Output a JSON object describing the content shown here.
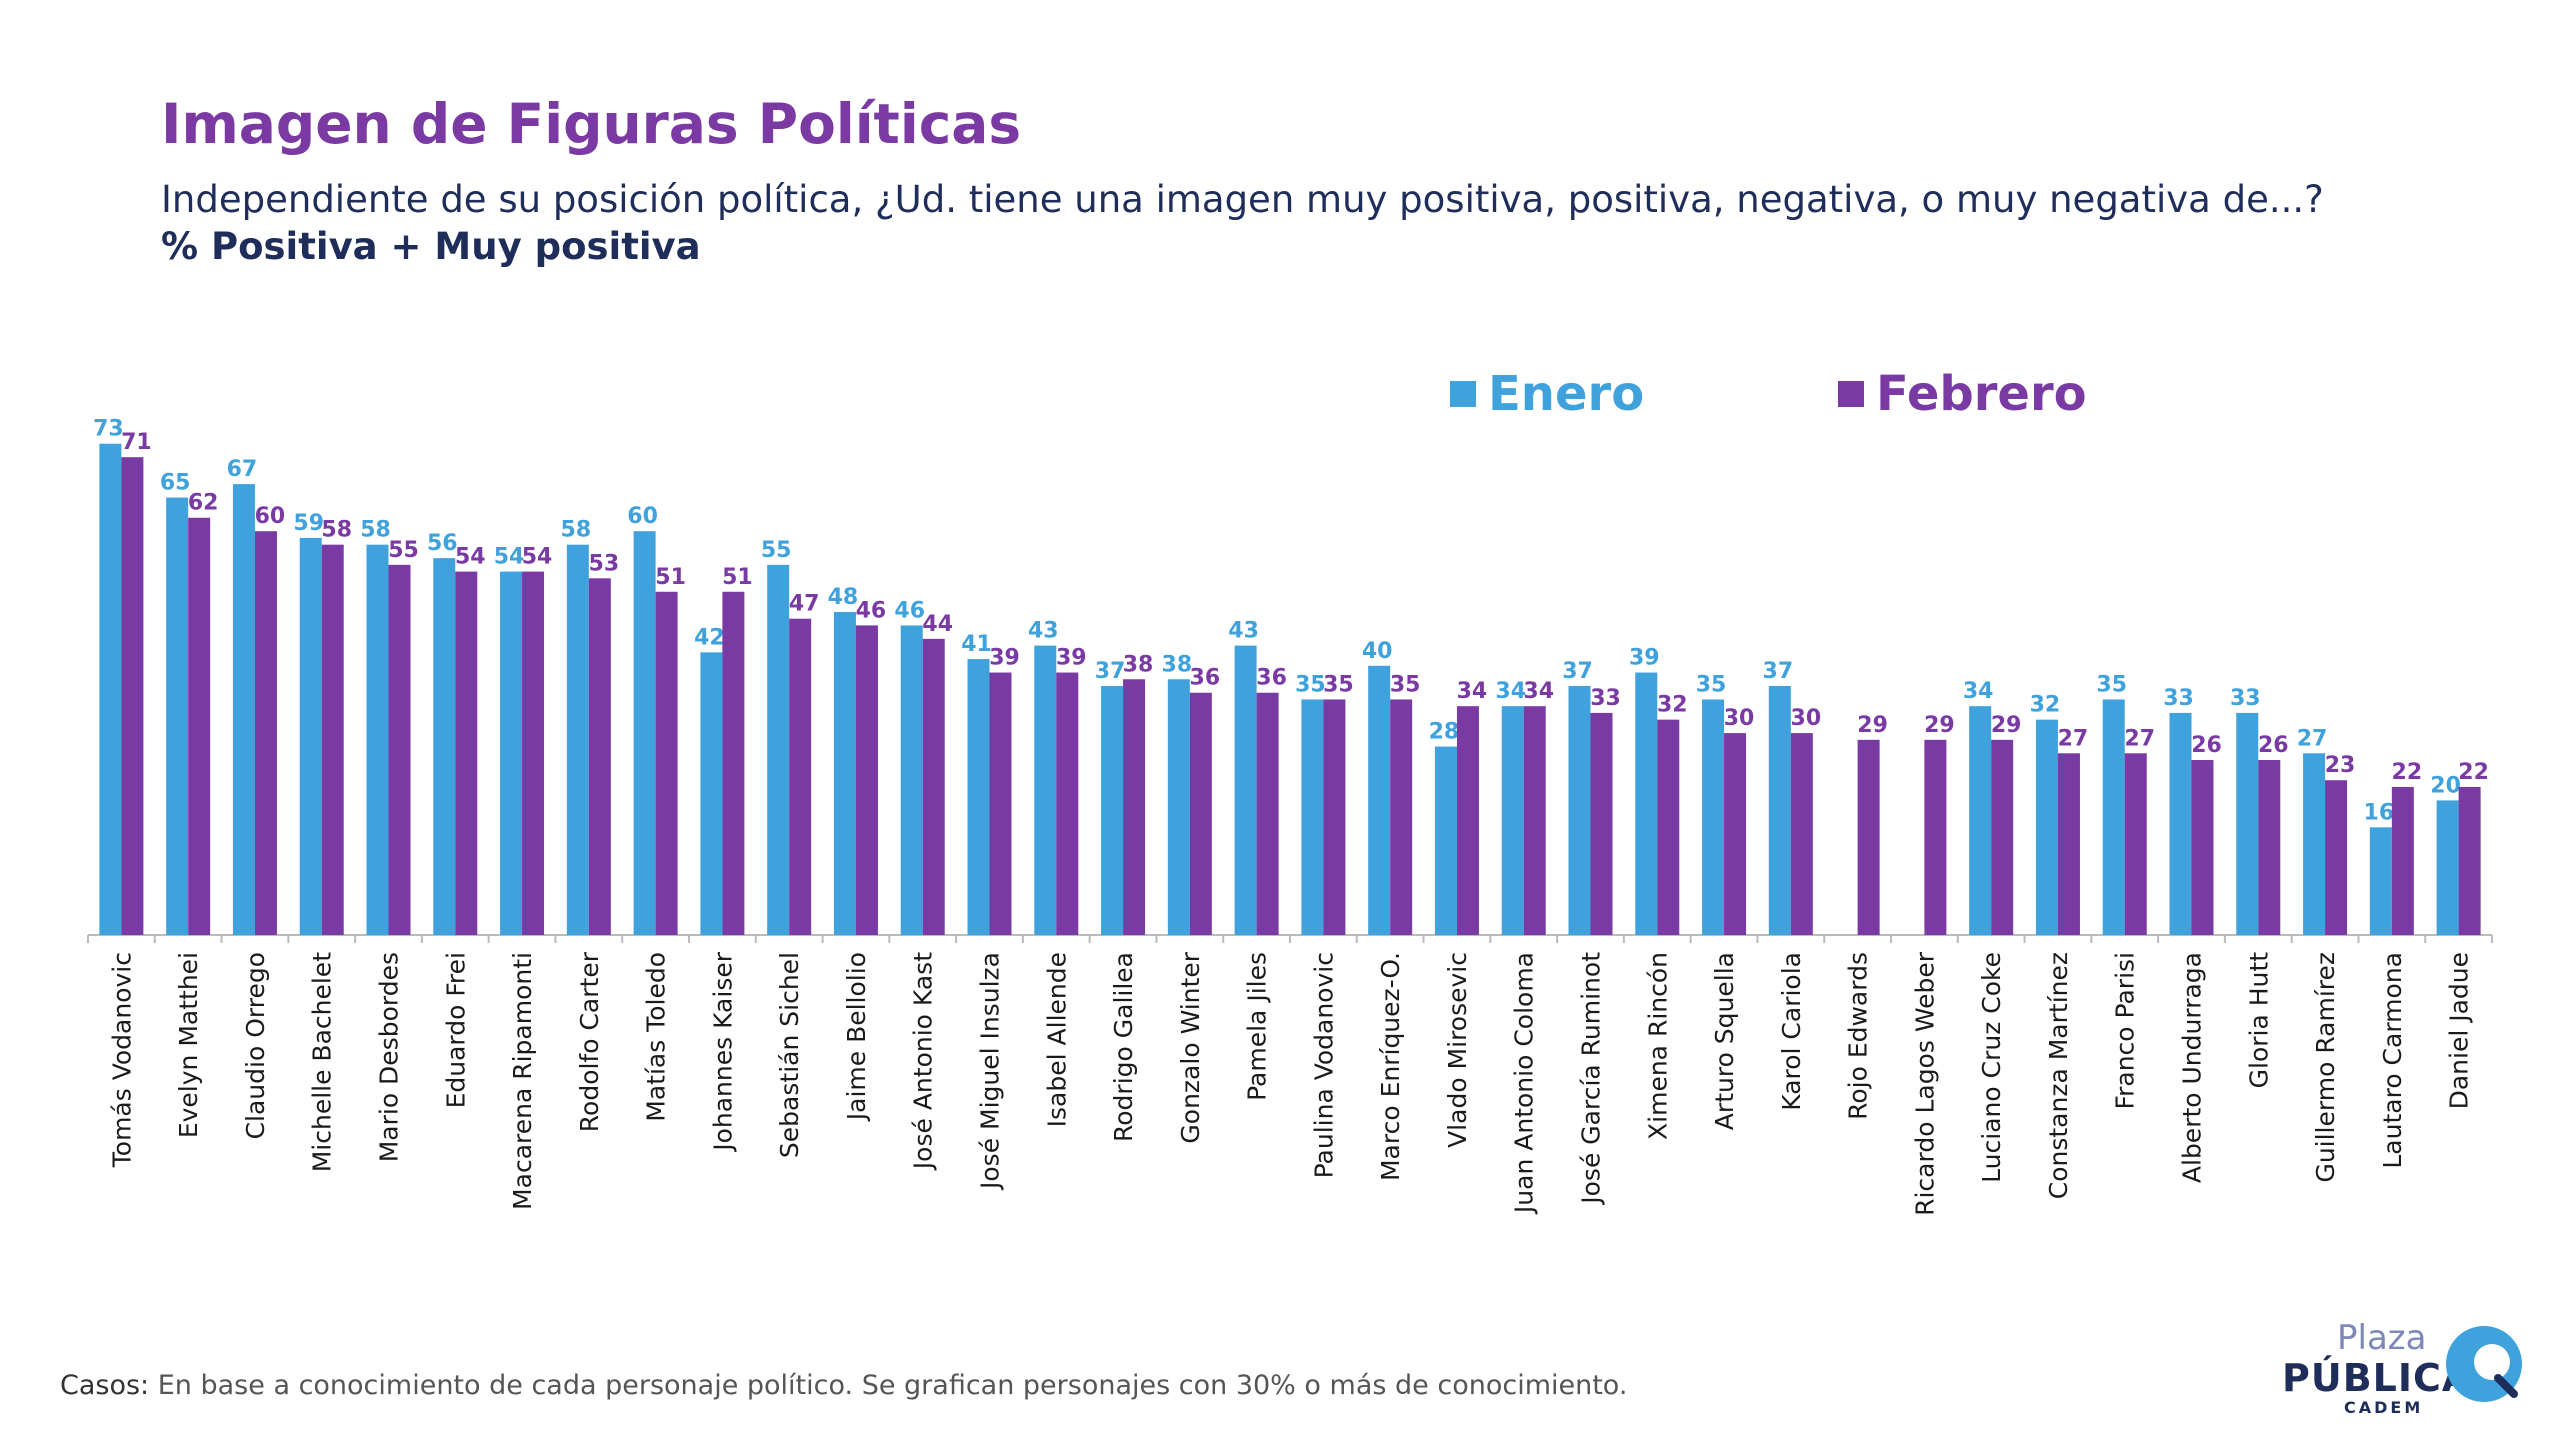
{
  "header": {
    "title": "Imagen de Figuras Políticas",
    "subtitle": "Independiente de su posición política, ¿Ud. tiene una imagen muy positiva, positiva, negativa, o muy negativa de...?",
    "metric": "% Positiva + Muy positiva"
  },
  "footnote": {
    "label": "Casos:",
    "text": " En base a conocimiento de cada personaje político. Se grafican personajes con 30% o más de conocimiento."
  },
  "logo": {
    "line1": "Plaza",
    "line2": "PÚBLICA",
    "line3": "CADEM"
  },
  "colors": {
    "enero": "#3fa2dd",
    "febrero": "#7a3aa3",
    "axis": "#bbbbbb",
    "label": "#1a1a1a"
  },
  "chart_data": {
    "type": "bar",
    "legend_position": "top-right",
    "grid": false,
    "ylim": [
      0,
      80
    ],
    "categories": [
      "Tomás Vodanovic",
      "Evelyn Matthei",
      "Claudio Orrego",
      "Michelle Bachelet",
      "Mario Desbordes",
      "Eduardo Frei",
      "Macarena Ripamonti",
      "Rodolfo Carter",
      "Matías Toledo",
      "Johannes Kaiser",
      "Sebastián Sichel",
      "Jaime Bellolio",
      "José Antonio Kast",
      "José Miguel Insulza",
      "Isabel Allende",
      "Rodrigo Galilea",
      "Gonzalo Winter",
      "Pamela Jiles",
      "Paulina Vodanovic",
      "Marco Enríquez-O.",
      "Vlado Mirosevic",
      "Juan Antonio Coloma",
      "José García Ruminot",
      "Ximena Rincón",
      "Arturo Squella",
      "Karol Cariola",
      "Rojo Edwards",
      "Ricardo Lagos Weber",
      "Luciano Cruz Coke",
      "Constanza Martínez",
      "Franco Parisi",
      "Alberto Undurraga",
      "Gloria Hutt",
      "Guillermo Ramírez",
      "Lautaro Carmona",
      "Daniel Jadue"
    ],
    "series": [
      {
        "name": "Enero",
        "values": [
          73,
          65,
          67,
          59,
          58,
          56,
          54,
          58,
          60,
          42,
          55,
          48,
          46,
          41,
          43,
          37,
          38,
          43,
          35,
          40,
          28,
          34,
          37,
          39,
          35,
          37,
          null,
          null,
          34,
          32,
          35,
          33,
          33,
          27,
          16,
          20
        ]
      },
      {
        "name": "Febrero",
        "values": [
          71,
          62,
          60,
          58,
          55,
          54,
          54,
          53,
          51,
          51,
          47,
          46,
          44,
          39,
          39,
          38,
          36,
          36,
          35,
          35,
          34,
          34,
          33,
          32,
          30,
          30,
          29,
          29,
          29,
          27,
          27,
          26,
          26,
          23,
          22,
          22
        ]
      }
    ]
  }
}
